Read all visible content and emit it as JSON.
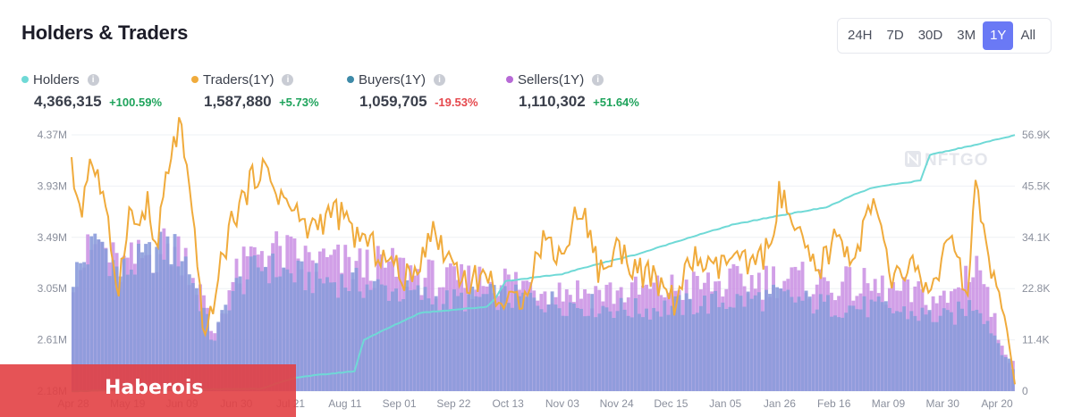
{
  "header": {
    "title": "Holders & Traders"
  },
  "range_tabs": [
    {
      "label": "24H",
      "active": false
    },
    {
      "label": "7D",
      "active": false
    },
    {
      "label": "30D",
      "active": false
    },
    {
      "label": "3M",
      "active": false
    },
    {
      "label": "1Y",
      "active": true
    },
    {
      "label": "All",
      "active": false
    }
  ],
  "legend": [
    {
      "label": "Holders",
      "color": "#6fd9d6",
      "value": "4,366,315",
      "change": "+100.59%",
      "trend": "up"
    },
    {
      "label": "Traders(1Y)",
      "color": "#f0ab3c",
      "value": "1,587,880",
      "change": "+5.73%",
      "trend": "up"
    },
    {
      "label": "Buyers(1Y)",
      "color": "#3e8aa8",
      "value": "1,059,705",
      "change": "-19.53%",
      "trend": "down"
    },
    {
      "label": "Sellers(1Y)",
      "color": "#b76ad6",
      "value": "1,110,302",
      "change": "+51.64%",
      "trend": "up"
    }
  ],
  "watermark": "NFTGO",
  "overlay": {
    "text": "Haberois"
  },
  "chart_data": {
    "type": "line",
    "x_tick_labels": [
      "Apr 28",
      "May 19",
      "Jun 09",
      "Jun 30",
      "Jul 21",
      "Aug 11",
      "Sep 01",
      "Sep 22",
      "Oct 13",
      "Nov 03",
      "Nov 24",
      "Dec 15",
      "Jan 05",
      "Jan 26",
      "Feb 16",
      "Mar 09",
      "Mar 30",
      "Apr 20"
    ],
    "y_left": {
      "ticks": [
        "2.18M",
        "2.61M",
        "3.05M",
        "3.49M",
        "3.93M",
        "4.37M"
      ],
      "range": [
        2180000,
        4370000
      ]
    },
    "y_right": {
      "ticks": [
        "0",
        "11.4K",
        "22.8K",
        "34.1K",
        "45.5K",
        "56.9K"
      ],
      "range": [
        0,
        56900
      ]
    },
    "series": [
      {
        "name": "Holders",
        "axis": "left",
        "style": "line",
        "color": "#6fd9d6",
        "keypoints": [
          [
            0,
            2180000
          ],
          [
            0.2,
            2200000
          ],
          [
            0.24,
            2300000
          ],
          [
            0.3,
            2350000
          ],
          [
            0.31,
            2620000
          ],
          [
            0.37,
            2850000
          ],
          [
            0.44,
            2900000
          ],
          [
            0.45,
            2980000
          ],
          [
            0.46,
            3120000
          ],
          [
            0.52,
            3180000
          ],
          [
            0.55,
            3250000
          ],
          [
            0.6,
            3350000
          ],
          [
            0.65,
            3480000
          ],
          [
            0.7,
            3600000
          ],
          [
            0.75,
            3680000
          ],
          [
            0.8,
            3750000
          ],
          [
            0.83,
            3860000
          ],
          [
            0.85,
            3920000
          ],
          [
            0.9,
            3980000
          ],
          [
            0.91,
            4200000
          ],
          [
            0.95,
            4270000
          ],
          [
            1.0,
            4366315
          ]
        ]
      },
      {
        "name": "Traders(1Y)",
        "axis": "right",
        "style": "line",
        "color": "#f0ab3c",
        "keypoints": [
          [
            0,
            49000
          ],
          [
            0.01,
            40000
          ],
          [
            0.02,
            52000
          ],
          [
            0.03,
            46000
          ],
          [
            0.04,
            34000
          ],
          [
            0.05,
            23000
          ],
          [
            0.06,
            40000
          ],
          [
            0.07,
            36000
          ],
          [
            0.08,
            42000
          ],
          [
            0.09,
            30000
          ],
          [
            0.1,
            47000
          ],
          [
            0.115,
            60000
          ],
          [
            0.13,
            34000
          ],
          [
            0.14,
            15000
          ],
          [
            0.145,
            12000
          ],
          [
            0.15,
            20000
          ],
          [
            0.17,
            38000
          ],
          [
            0.2,
            50000
          ],
          [
            0.22,
            44000
          ],
          [
            0.25,
            36000
          ],
          [
            0.28,
            40000
          ],
          [
            0.3,
            35000
          ],
          [
            0.33,
            30000
          ],
          [
            0.36,
            24000
          ],
          [
            0.38,
            36000
          ],
          [
            0.4,
            30000
          ],
          [
            0.42,
            24000
          ],
          [
            0.44,
            26000
          ],
          [
            0.46,
            18000
          ],
          [
            0.48,
            22000
          ],
          [
            0.5,
            34000
          ],
          [
            0.52,
            30000
          ],
          [
            0.54,
            42000
          ],
          [
            0.56,
            26000
          ],
          [
            0.58,
            32000
          ],
          [
            0.6,
            27000
          ],
          [
            0.62,
            24000
          ],
          [
            0.64,
            20000
          ],
          [
            0.66,
            30000
          ],
          [
            0.68,
            26000
          ],
          [
            0.7,
            30000
          ],
          [
            0.72,
            27000
          ],
          [
            0.74,
            32000
          ],
          [
            0.75,
            44000
          ],
          [
            0.77,
            34000
          ],
          [
            0.79,
            26000
          ],
          [
            0.81,
            34000
          ],
          [
            0.83,
            30000
          ],
          [
            0.85,
            42000
          ],
          [
            0.87,
            24000
          ],
          [
            0.89,
            28000
          ],
          [
            0.91,
            22000
          ],
          [
            0.93,
            33000
          ],
          [
            0.95,
            22000
          ],
          [
            0.96,
            48000
          ],
          [
            0.97,
            30000
          ],
          [
            0.98,
            22000
          ],
          [
            0.99,
            16000
          ],
          [
            1.0,
            1500
          ]
        ]
      },
      {
        "name": "Buyers(1Y)",
        "axis": "right",
        "style": "bars",
        "color": "#8a9bda",
        "keypoints": [
          [
            0,
            25000
          ],
          [
            0.03,
            34000
          ],
          [
            0.05,
            26000
          ],
          [
            0.1,
            32000
          ],
          [
            0.12,
            30000
          ],
          [
            0.14,
            18000
          ],
          [
            0.15,
            11000
          ],
          [
            0.17,
            22000
          ],
          [
            0.2,
            28000
          ],
          [
            0.25,
            25000
          ],
          [
            0.3,
            24000
          ],
          [
            0.35,
            22000
          ],
          [
            0.4,
            20000
          ],
          [
            0.45,
            21000
          ],
          [
            0.5,
            20000
          ],
          [
            0.55,
            19000
          ],
          [
            0.6,
            18000
          ],
          [
            0.65,
            19000
          ],
          [
            0.7,
            20000
          ],
          [
            0.75,
            21000
          ],
          [
            0.8,
            19000
          ],
          [
            0.85,
            18500
          ],
          [
            0.9,
            17000
          ],
          [
            0.93,
            16000
          ],
          [
            0.96,
            20000
          ],
          [
            0.98,
            12000
          ],
          [
            1.0,
            4000
          ]
        ]
      },
      {
        "name": "Sellers(1Y)",
        "axis": "right",
        "style": "bars",
        "color": "#c98ee3",
        "keypoints": [
          [
            0,
            26000
          ],
          [
            0.03,
            33000
          ],
          [
            0.05,
            27000
          ],
          [
            0.1,
            32000
          ],
          [
            0.12,
            31000
          ],
          [
            0.14,
            20000
          ],
          [
            0.15,
            12000
          ],
          [
            0.17,
            24000
          ],
          [
            0.2,
            32000
          ],
          [
            0.25,
            29000
          ],
          [
            0.3,
            28000
          ],
          [
            0.35,
            27000
          ],
          [
            0.4,
            24000
          ],
          [
            0.45,
            25000
          ],
          [
            0.5,
            23000
          ],
          [
            0.55,
            22000
          ],
          [
            0.6,
            22000
          ],
          [
            0.65,
            23000
          ],
          [
            0.7,
            24000
          ],
          [
            0.75,
            25000
          ],
          [
            0.8,
            24000
          ],
          [
            0.85,
            23000
          ],
          [
            0.9,
            21000
          ],
          [
            0.93,
            20000
          ],
          [
            0.96,
            30000
          ],
          [
            0.98,
            14000
          ],
          [
            1.0,
            5000
          ]
        ]
      }
    ],
    "grid": true,
    "legend_position": "top-left"
  }
}
